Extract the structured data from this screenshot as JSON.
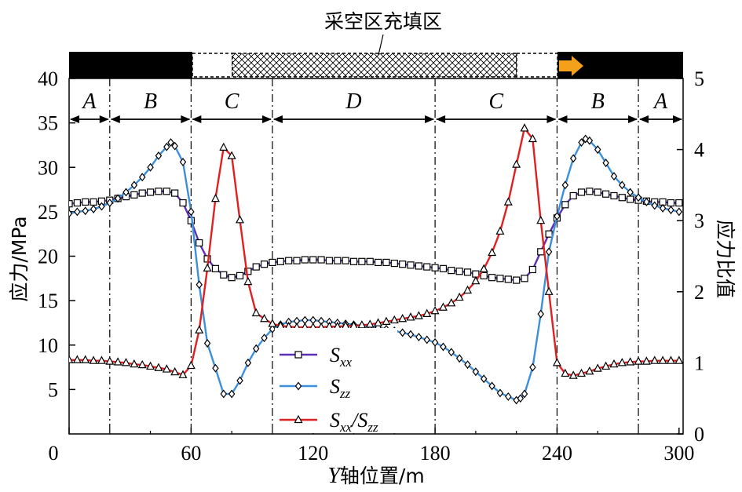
{
  "chart_data": {
    "type": "line",
    "title": "",
    "top_band_label": "采空区充填区",
    "xlabel_italic": "Y",
    "xlabel_rest": "轴位置/m",
    "ylabel": "应力/MPa",
    "y2label": "应力比值",
    "xlim": [
      0,
      302
    ],
    "ylim": [
      0,
      40
    ],
    "y2lim": [
      0,
      5
    ],
    "xticks": [
      "0",
      "60",
      "120",
      "180",
      "240",
      "300"
    ],
    "xtick_values": [
      0,
      60,
      120,
      180,
      240,
      300
    ],
    "yticks": [
      "5",
      "10",
      "15",
      "20",
      "25",
      "30",
      "35",
      "40"
    ],
    "ytick_values": [
      5,
      10,
      15,
      20,
      25,
      30,
      35,
      40
    ],
    "y2ticks": [
      "0",
      "1",
      "2",
      "3",
      "4",
      "5"
    ],
    "y2tick_values": [
      0,
      1,
      2,
      3,
      4,
      5
    ],
    "boundaries": [
      20,
      60,
      100,
      180,
      240,
      280
    ],
    "zones": [
      {
        "label": "A",
        "from": 0,
        "to": 20
      },
      {
        "label": "B",
        "from": 20,
        "to": 60
      },
      {
        "label": "C",
        "from": 60,
        "to": 100
      },
      {
        "label": "D",
        "from": 100,
        "to": 180
      },
      {
        "label": "C",
        "from": 180,
        "to": 240
      },
      {
        "label": "B",
        "from": 240,
        "to": 280
      },
      {
        "label": "A",
        "from": 280,
        "to": 302
      }
    ],
    "series": [
      {
        "name": "S_xx",
        "name_main": "S",
        "name_sub": "xx",
        "color": "#5b2fb5",
        "marker": "square",
        "axis": "left",
        "x": [
          0,
          4,
          8,
          12,
          16,
          20,
          24,
          28,
          32,
          36,
          40,
          44,
          48,
          52,
          56,
          60,
          64,
          68,
          72,
          76,
          80,
          84,
          88,
          92,
          96,
          100,
          104,
          108,
          112,
          116,
          120,
          124,
          128,
          132,
          136,
          140,
          144,
          148,
          152,
          156,
          160,
          164,
          168,
          172,
          176,
          180,
          184,
          188,
          192,
          196,
          200,
          204,
          208,
          212,
          216,
          220,
          224,
          228,
          232,
          236,
          240,
          244,
          248,
          252,
          256,
          260,
          264,
          268,
          272,
          276,
          280,
          284,
          288,
          292,
          296,
          300
        ],
        "y": [
          25.9,
          26.0,
          26.1,
          26.1,
          26.2,
          26.3,
          26.5,
          26.7,
          26.9,
          27.1,
          27.2,
          27.3,
          27.3,
          27.1,
          26.0,
          24.0,
          21.5,
          19.7,
          18.6,
          17.9,
          17.6,
          17.8,
          18.3,
          18.8,
          19.1,
          19.3,
          19.4,
          19.5,
          19.5,
          19.6,
          19.6,
          19.6,
          19.5,
          19.5,
          19.5,
          19.4,
          19.4,
          19.4,
          19.3,
          19.3,
          19.2,
          19.1,
          19.0,
          18.9,
          18.8,
          18.7,
          18.6,
          18.4,
          18.3,
          18.2,
          18.0,
          17.8,
          17.6,
          17.5,
          17.4,
          17.3,
          17.5,
          18.5,
          20.5,
          22.5,
          24.3,
          25.8,
          26.8,
          27.2,
          27.3,
          27.2,
          27.0,
          26.8,
          26.6,
          26.4,
          26.3,
          26.2,
          26.1,
          26.1,
          26.0,
          26.0
        ]
      },
      {
        "name": "S_zz",
        "name_main": "S",
        "name_sub": "zz",
        "color": "#3b8fdc",
        "marker": "diamond",
        "axis": "left",
        "x": [
          0,
          4,
          8,
          12,
          16,
          20,
          24,
          28,
          32,
          36,
          40,
          44,
          48,
          50,
          52,
          56,
          60,
          64,
          68,
          72,
          76,
          80,
          84,
          88,
          92,
          96,
          100,
          104,
          108,
          112,
          116,
          120,
          124,
          128,
          132,
          136,
          140,
          144,
          148,
          152,
          156,
          160,
          164,
          168,
          172,
          176,
          180,
          184,
          188,
          192,
          196,
          200,
          204,
          208,
          212,
          216,
          220,
          222,
          224,
          228,
          232,
          236,
          240,
          244,
          248,
          252,
          254,
          256,
          260,
          264,
          268,
          272,
          276,
          280,
          284,
          288,
          292,
          296,
          300
        ],
        "y": [
          24.8,
          25.0,
          25.1,
          25.3,
          25.6,
          26.0,
          26.5,
          27.2,
          28.0,
          28.9,
          30.0,
          31.3,
          32.3,
          32.8,
          32.4,
          30.6,
          25.0,
          16.8,
          10.2,
          7.4,
          4.5,
          4.5,
          6.0,
          8.0,
          9.6,
          10.8,
          11.8,
          12.3,
          12.6,
          12.7,
          12.8,
          12.8,
          12.7,
          12.6,
          12.5,
          12.4,
          12.3,
          12.2,
          12.1,
          12.0,
          11.8,
          11.6,
          11.4,
          11.2,
          10.9,
          10.6,
          10.3,
          9.8,
          9.2,
          8.5,
          7.8,
          7.0,
          6.2,
          5.4,
          4.6,
          4.2,
          3.8,
          4.0,
          4.5,
          7.5,
          13.5,
          20.5,
          24.5,
          28.0,
          31.0,
          32.8,
          33.2,
          33.0,
          32.0,
          30.5,
          29.0,
          28.0,
          27.2,
          26.6,
          26.1,
          25.7,
          25.4,
          25.2,
          25.0
        ]
      },
      {
        "name": "S_xx/S_zz",
        "name_main": "S",
        "name_sub": "xx",
        "name_mid": "/S",
        "name_sub2": "zz",
        "color": "#e02020",
        "marker": "triangle",
        "axis": "right",
        "x": [
          0,
          4,
          8,
          12,
          16,
          20,
          24,
          28,
          32,
          36,
          40,
          44,
          48,
          52,
          56,
          60,
          64,
          68,
          72,
          76,
          80,
          84,
          88,
          92,
          96,
          100,
          104,
          108,
          112,
          116,
          120,
          124,
          128,
          132,
          136,
          140,
          144,
          148,
          152,
          156,
          160,
          164,
          168,
          172,
          176,
          180,
          184,
          188,
          192,
          196,
          200,
          204,
          208,
          212,
          216,
          220,
          224,
          228,
          232,
          236,
          240,
          244,
          248,
          252,
          256,
          260,
          264,
          268,
          272,
          276,
          280,
          284,
          288,
          292,
          296,
          300
        ],
        "y": [
          1.04,
          1.04,
          1.04,
          1.03,
          1.03,
          1.02,
          1.01,
          1.0,
          0.98,
          0.97,
          0.95,
          0.93,
          0.91,
          0.87,
          0.83,
          0.96,
          1.46,
          2.33,
          3.31,
          4.03,
          3.91,
          3.01,
          2.14,
          1.7,
          1.62,
          1.55,
          1.52,
          1.51,
          1.5,
          1.5,
          1.5,
          1.5,
          1.51,
          1.51,
          1.52,
          1.52,
          1.53,
          1.54,
          1.56,
          1.58,
          1.6,
          1.62,
          1.64,
          1.66,
          1.69,
          1.73,
          1.78,
          1.84,
          1.92,
          2.02,
          2.15,
          2.32,
          2.55,
          2.85,
          3.26,
          3.79,
          4.3,
          4.15,
          3.0,
          2.0,
          1.0,
          0.85,
          0.82,
          0.85,
          0.88,
          0.92,
          0.95,
          0.98,
          1.0,
          1.01,
          1.02,
          1.02,
          1.03,
          1.03,
          1.03,
          1.03
        ]
      }
    ]
  }
}
